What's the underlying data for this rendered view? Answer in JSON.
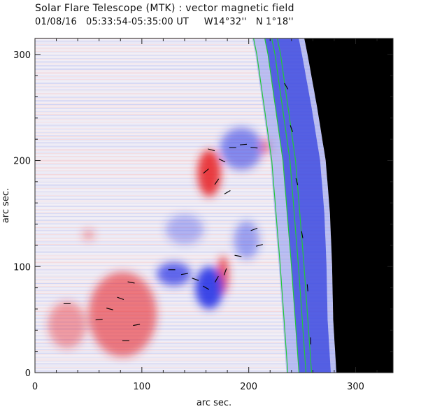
{
  "header": {
    "title": "Solar Flare Telescope (MTK) : vector magnetic field",
    "date": "01/08/16",
    "time_range": "05:33:54-05:35:00 UT",
    "position_w": "W14°32''",
    "position_n": "N 1°18''"
  },
  "chart_data": {
    "type": "heatmap",
    "title": "Solar Flare Telescope (MTK) : vector magnetic field",
    "subtitle": "01/08/16   05:33:54-05:35:00 UT     W14°32''   N 1°18''",
    "xlabel": "arc sec.",
    "ylabel": "arc sec.",
    "xlim": [
      0,
      335
    ],
    "ylim": [
      0,
      315
    ],
    "x_ticks": [
      0,
      100,
      200,
      300
    ],
    "y_ticks": [
      0,
      100,
      200,
      300
    ],
    "x_tick_labels": [
      "0",
      "100",
      "200",
      "300"
    ],
    "y_tick_labels": [
      "0",
      "100",
      "200",
      "300"
    ],
    "limb_x_at_y": [
      [
        0,
        282
      ],
      [
        50,
        279
      ],
      [
        100,
        278
      ],
      [
        150,
        276
      ],
      [
        200,
        272
      ],
      [
        250,
        264
      ],
      [
        300,
        255
      ],
      [
        315,
        252
      ]
    ],
    "contours_x_at_y": [
      [
        0,
        247
      ],
      [
        100,
        240
      ],
      [
        200,
        232
      ],
      [
        250,
        225
      ],
      [
        300,
        218
      ],
      [
        315,
        215
      ]
    ],
    "positive_regions": [
      {
        "cx": 163,
        "cy": 188,
        "rx": 11,
        "ry": 22,
        "strength": 1.0
      },
      {
        "cx": 176,
        "cy": 92,
        "rx": 5,
        "ry": 18,
        "strength": 0.9
      },
      {
        "cx": 82,
        "cy": 55,
        "rx": 32,
        "ry": 40,
        "strength": 0.65
      },
      {
        "cx": 30,
        "cy": 45,
        "rx": 18,
        "ry": 22,
        "strength": 0.45
      },
      {
        "cx": 216,
        "cy": 213,
        "rx": 5,
        "ry": 7,
        "strength": 0.6
      },
      {
        "cx": 50,
        "cy": 130,
        "rx": 6,
        "ry": 5,
        "strength": 0.4
      }
    ],
    "negative_regions": [
      {
        "cx": 163,
        "cy": 80,
        "rx": 13,
        "ry": 20,
        "strength": 1.0
      },
      {
        "cx": 130,
        "cy": 93,
        "rx": 16,
        "ry": 11,
        "strength": 0.8
      },
      {
        "cx": 193,
        "cy": 211,
        "rx": 20,
        "ry": 20,
        "strength": 0.6
      },
      {
        "cx": 198,
        "cy": 125,
        "rx": 12,
        "ry": 18,
        "strength": 0.45
      },
      {
        "cx": 140,
        "cy": 135,
        "rx": 18,
        "ry": 14,
        "strength": 0.35
      }
    ],
    "transverse_field_vectors": [
      {
        "x": 165,
        "y": 210,
        "angle": -15
      },
      {
        "x": 175,
        "y": 200,
        "angle": -25
      },
      {
        "x": 185,
        "y": 212,
        "angle": 0
      },
      {
        "x": 195,
        "y": 215,
        "angle": 5
      },
      {
        "x": 205,
        "y": 212,
        "angle": -5
      },
      {
        "x": 160,
        "y": 190,
        "angle": 40
      },
      {
        "x": 170,
        "y": 180,
        "angle": 55
      },
      {
        "x": 180,
        "y": 170,
        "angle": 30
      },
      {
        "x": 178,
        "y": 95,
        "angle": 70
      },
      {
        "x": 170,
        "y": 88,
        "angle": 60
      },
      {
        "x": 160,
        "y": 80,
        "angle": -30
      },
      {
        "x": 150,
        "y": 88,
        "angle": -20
      },
      {
        "x": 140,
        "y": 93,
        "angle": 10
      },
      {
        "x": 128,
        "y": 97,
        "angle": 0
      },
      {
        "x": 90,
        "y": 85,
        "angle": -10
      },
      {
        "x": 80,
        "y": 70,
        "angle": -20
      },
      {
        "x": 70,
        "y": 60,
        "angle": -15
      },
      {
        "x": 95,
        "y": 45,
        "angle": 10
      },
      {
        "x": 85,
        "y": 30,
        "angle": 0
      },
      {
        "x": 60,
        "y": 50,
        "angle": 5
      },
      {
        "x": 30,
        "y": 65,
        "angle": 0
      },
      {
        "x": 235,
        "y": 270,
        "angle": -60
      },
      {
        "x": 240,
        "y": 230,
        "angle": -70
      },
      {
        "x": 245,
        "y": 180,
        "angle": -75
      },
      {
        "x": 250,
        "y": 130,
        "angle": -80
      },
      {
        "x": 255,
        "y": 80,
        "angle": -85
      },
      {
        "x": 258,
        "y": 30,
        "angle": -88
      },
      {
        "x": 205,
        "y": 135,
        "angle": 20
      },
      {
        "x": 210,
        "y": 120,
        "angle": 15
      },
      {
        "x": 190,
        "y": 110,
        "angle": -10
      }
    ],
    "colors": {
      "positive": "#e8282f",
      "negative": "#2a35e6",
      "contour": "#23c83a",
      "off_disk": "#000000",
      "vectors": "#000000"
    }
  }
}
